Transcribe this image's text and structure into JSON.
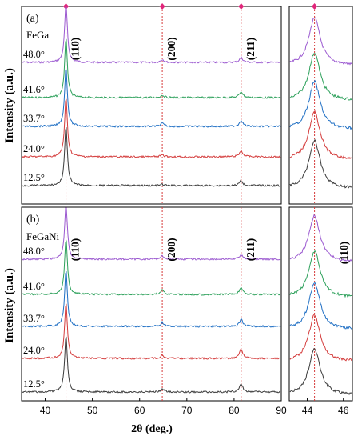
{
  "chart_data": [
    {
      "type": "line",
      "panel": "(a)",
      "sample": "FeGa",
      "xlabel": "",
      "ylabel": "Intensity (a.u.)",
      "xlim": [
        35,
        90
      ],
      "peaks": [
        {
          "label": "(110)",
          "x": 44.4
        },
        {
          "label": "(200)",
          "x": 64.8
        },
        {
          "label": "(211)",
          "x": 81.5
        }
      ],
      "series": [
        {
          "label": "48.0°",
          "color": "#9b59d0",
          "peak_heights": [
            1.0,
            0.05,
            0.08
          ]
        },
        {
          "label": "41.6°",
          "color": "#2ca05a",
          "peak_heights": [
            1.0,
            0.04,
            0.1
          ]
        },
        {
          "label": "33.7°",
          "color": "#1f6fc4",
          "peak_heights": [
            1.0,
            0.05,
            0.1
          ]
        },
        {
          "label": "24.0°",
          "color": "#d43c3c",
          "peak_heights": [
            1.0,
            0.03,
            0.1
          ]
        },
        {
          "label": "12.5°",
          "color": "#3a3a3a",
          "peak_heights": [
            1.0,
            0.02,
            0.08
          ]
        }
      ],
      "zoom": {
        "xlim": [
          43,
          46.5
        ],
        "xticks": [
          44,
          46
        ],
        "peak_x": 44.4
      }
    },
    {
      "type": "line",
      "panel": "(b)",
      "sample": "FeGaNi",
      "xlabel": "2θ (deg.)",
      "ylabel": "Intensity (a.u.)",
      "xlim": [
        35,
        90
      ],
      "xticks": [
        40,
        50,
        60,
        70,
        80,
        90
      ],
      "peaks": [
        {
          "label": "(110)",
          "x": 44.4
        },
        {
          "label": "(200)",
          "x": 64.8
        },
        {
          "label": "(211)",
          "x": 81.5
        }
      ],
      "series": [
        {
          "label": "48.0°",
          "color": "#9b59d0",
          "peak_heights": [
            1.0,
            0.06,
            0.08
          ]
        },
        {
          "label": "41.6°",
          "color": "#2ca05a",
          "peak_heights": [
            1.0,
            0.08,
            0.12
          ]
        },
        {
          "label": "33.7°",
          "color": "#1f6fc4",
          "peak_heights": [
            1.0,
            0.07,
            0.12
          ]
        },
        {
          "label": "24.0°",
          "color": "#d43c3c",
          "peak_heights": [
            1.0,
            0.06,
            0.16
          ]
        },
        {
          "label": "12.5°",
          "color": "#3a3a3a",
          "peak_heights": [
            1.0,
            0.05,
            0.14
          ]
        }
      ],
      "zoom": {
        "xlim": [
          43,
          46.5
        ],
        "xticks": [
          44,
          46
        ],
        "peak_x": 44.4,
        "label": "(110)"
      }
    }
  ],
  "colors": {
    "reference_line": "#d63a3a",
    "marker": "#e0267a",
    "axis": "#000000"
  }
}
